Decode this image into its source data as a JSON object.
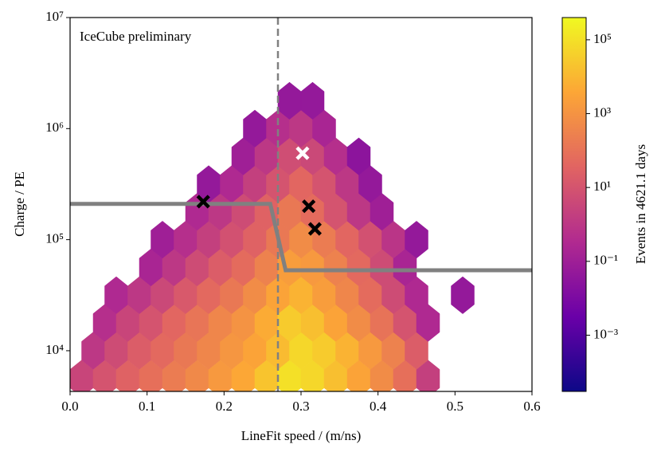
{
  "chart_data": {
    "type": "hexbin",
    "annotation": "IceCube preliminary",
    "annotation_color": "#e8261e",
    "x_label": "LineFit speed / (m/ns)",
    "y_label": "Charge / PE",
    "colorbar_label": "Events in 4621.1 days",
    "xlim": [
      0,
      0.6
    ],
    "xticks": [
      {
        "value": 0,
        "label": "0.0"
      },
      0.1,
      0.2,
      0.3,
      0.4,
      0.5,
      0.6
    ],
    "ylim": [
      4300,
      10000000
    ],
    "y_log": true,
    "yticks": [
      {
        "value": 10000,
        "label": "10⁴"
      },
      {
        "value": 100000,
        "label": "10⁵"
      },
      {
        "value": 1000000,
        "label": "10⁶"
      },
      {
        "value": 10000000,
        "label": "10⁷"
      }
    ],
    "clim": [
      3e-05,
      400000
    ],
    "c_log": true,
    "cticks": [
      {
        "value": 0.001,
        "label": "10⁻³"
      },
      {
        "value": 0.1,
        "label": "10⁻¹"
      },
      {
        "value": 10,
        "label": "10¹"
      },
      {
        "value": 1000,
        "label": "10³"
      },
      {
        "value": 100000,
        "label": "10⁵"
      }
    ],
    "colormap": [
      "#0d0887",
      "#6a00a8",
      "#b12a90",
      "#e16462",
      "#fca636",
      "#f0f921"
    ],
    "hexbins": [
      {
        "y": 5600,
        "x": [
          0.015,
          0.045,
          0.075,
          0.105,
          0.135,
          0.165,
          0.195,
          0.225,
          0.255,
          0.285,
          0.315,
          0.345,
          0.375,
          0.405,
          0.435,
          0.465
        ],
        "counts": [
          3,
          10,
          30,
          80,
          200,
          500,
          1500,
          4000,
          20000,
          100000,
          60000,
          15000,
          3000,
          600,
          80,
          2
        ]
      },
      {
        "y": 10000,
        "x": [
          0.03,
          0.06,
          0.09,
          0.12,
          0.15,
          0.18,
          0.21,
          0.24,
          0.27,
          0.3,
          0.33,
          0.36,
          0.39,
          0.42,
          0.45
        ],
        "counts": [
          1,
          5,
          20,
          50,
          150,
          400,
          1200,
          3000,
          12000,
          60000,
          30000,
          8000,
          1500,
          300,
          20
        ]
      },
      {
        "y": 17800,
        "x": [
          0.045,
          0.075,
          0.105,
          0.135,
          0.165,
          0.195,
          0.225,
          0.255,
          0.285,
          0.315,
          0.345,
          0.375,
          0.405,
          0.435,
          0.465
        ],
        "counts": [
          0.5,
          3,
          10,
          40,
          120,
          400,
          1000,
          5000,
          30000,
          15000,
          3000,
          600,
          100,
          10,
          0.3
        ]
      },
      {
        "y": 31600,
        "x": [
          0.06,
          0.09,
          0.12,
          0.15,
          0.18,
          0.21,
          0.24,
          0.27,
          0.3,
          0.33,
          0.36,
          0.39,
          0.42,
          0.45,
          0.51
        ],
        "counts": [
          0.3,
          1,
          4,
          15,
          50,
          150,
          600,
          3000,
          8000,
          2000,
          400,
          60,
          5,
          0.3,
          0.05
        ]
      },
      {
        "y": 56200,
        "x": [
          0.105,
          0.135,
          0.165,
          0.195,
          0.225,
          0.255,
          0.285,
          0.315,
          0.345,
          0.375,
          0.405,
          0.435
        ],
        "counts": [
          0.2,
          1,
          5,
          20,
          60,
          300,
          2000,
          1500,
          300,
          50,
          5,
          0.2
        ]
      },
      {
        "y": 100000,
        "x": [
          0.12,
          0.15,
          0.18,
          0.21,
          0.24,
          0.27,
          0.3,
          0.33,
          0.36,
          0.39,
          0.42,
          0.45
        ],
        "counts": [
          0.1,
          0.5,
          2,
          8,
          30,
          150,
          600,
          200,
          40,
          8,
          0.8,
          0.05
        ]
      },
      {
        "y": 178000,
        "x": [
          0.165,
          0.195,
          0.225,
          0.255,
          0.285,
          0.315,
          0.345,
          0.375,
          0.405
        ],
        "counts": [
          0.3,
          1,
          5,
          30,
          150,
          60,
          10,
          1,
          0.1
        ]
      },
      {
        "y": 316000,
        "x": [
          0.18,
          0.21,
          0.24,
          0.27,
          0.3,
          0.33,
          0.36,
          0.39
        ],
        "counts": [
          0.05,
          0.3,
          2,
          10,
          40,
          10,
          1,
          0.05
        ]
      },
      {
        "y": 562000,
        "x": [
          0.225,
          0.255,
          0.285,
          0.315,
          0.345,
          0.375
        ],
        "counts": [
          0.1,
          1,
          6,
          4,
          0.5,
          0.03
        ]
      },
      {
        "y": 1000000,
        "x": [
          0.24,
          0.27,
          0.3,
          0.33
        ],
        "counts": [
          0.05,
          0.5,
          1,
          0.2
        ]
      },
      {
        "y": 1780000,
        "x": [
          0.285,
          0.315
        ],
        "counts": [
          0.05,
          0.05
        ]
      }
    ],
    "vline": {
      "x": 0.27,
      "color": "#808080"
    },
    "cut_line": {
      "color": "#808080",
      "x": [
        0,
        0.26,
        0.28,
        0.6
      ],
      "y": [
        210000,
        210000,
        53000,
        53000
      ]
    },
    "markers": [
      {
        "color": "#000000",
        "x": [
          0.173,
          0.31,
          0.318
        ],
        "y": [
          220000,
          200000,
          125000
        ]
      },
      {
        "color": "#ffffff",
        "x": [
          0.302
        ],
        "y": [
          600000
        ]
      }
    ]
  }
}
